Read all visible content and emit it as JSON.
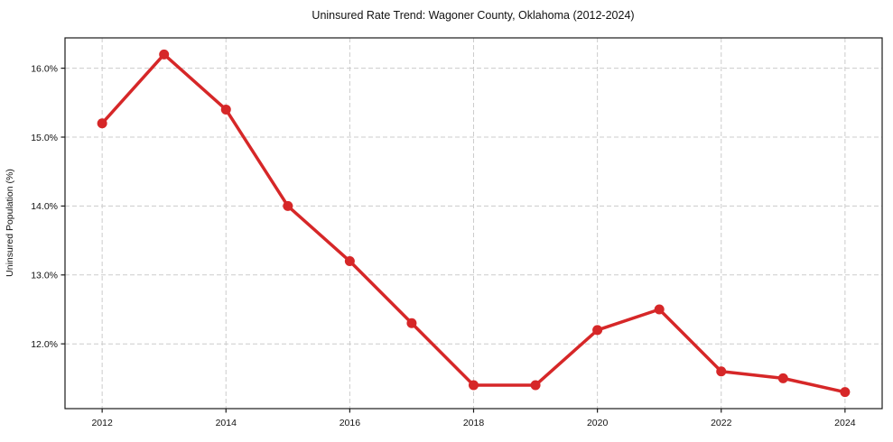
{
  "chart_data": {
    "type": "line",
    "title": "Uninsured Rate Trend: Wagoner County, Oklahoma (2012-2024)",
    "xlabel": "",
    "ylabel": "Uninsured Population (%)",
    "x": [
      2012,
      2013,
      2014,
      2015,
      2016,
      2017,
      2018,
      2019,
      2020,
      2021,
      2022,
      2023,
      2024
    ],
    "values": [
      15.2,
      16.2,
      15.4,
      14.0,
      13.2,
      12.3,
      11.4,
      11.4,
      12.2,
      12.5,
      11.6,
      11.5,
      11.3
    ],
    "xticks": {
      "values": [
        2012,
        2014,
        2016,
        2018,
        2020,
        2022,
        2024
      ],
      "labels": [
        "2012",
        "2014",
        "2016",
        "2018",
        "2020",
        "2022",
        "2024"
      ]
    },
    "yticks": {
      "values": [
        12,
        13,
        14,
        15,
        16
      ],
      "labels": [
        "12.0%",
        "13.0%",
        "14.0%",
        "15.0%",
        "16.0%"
      ]
    },
    "xlim": [
      2011.4,
      2024.6
    ],
    "ylim": [
      11.06,
      16.44
    ],
    "grid": true,
    "grid_style": "dashed",
    "legend": false,
    "colors": {
      "line": "#d62728",
      "marker": "#d62728",
      "grid": "#cccccc",
      "spine": "#1a1a1a",
      "tick": "#1a1a1a",
      "background": "#ffffff"
    }
  }
}
